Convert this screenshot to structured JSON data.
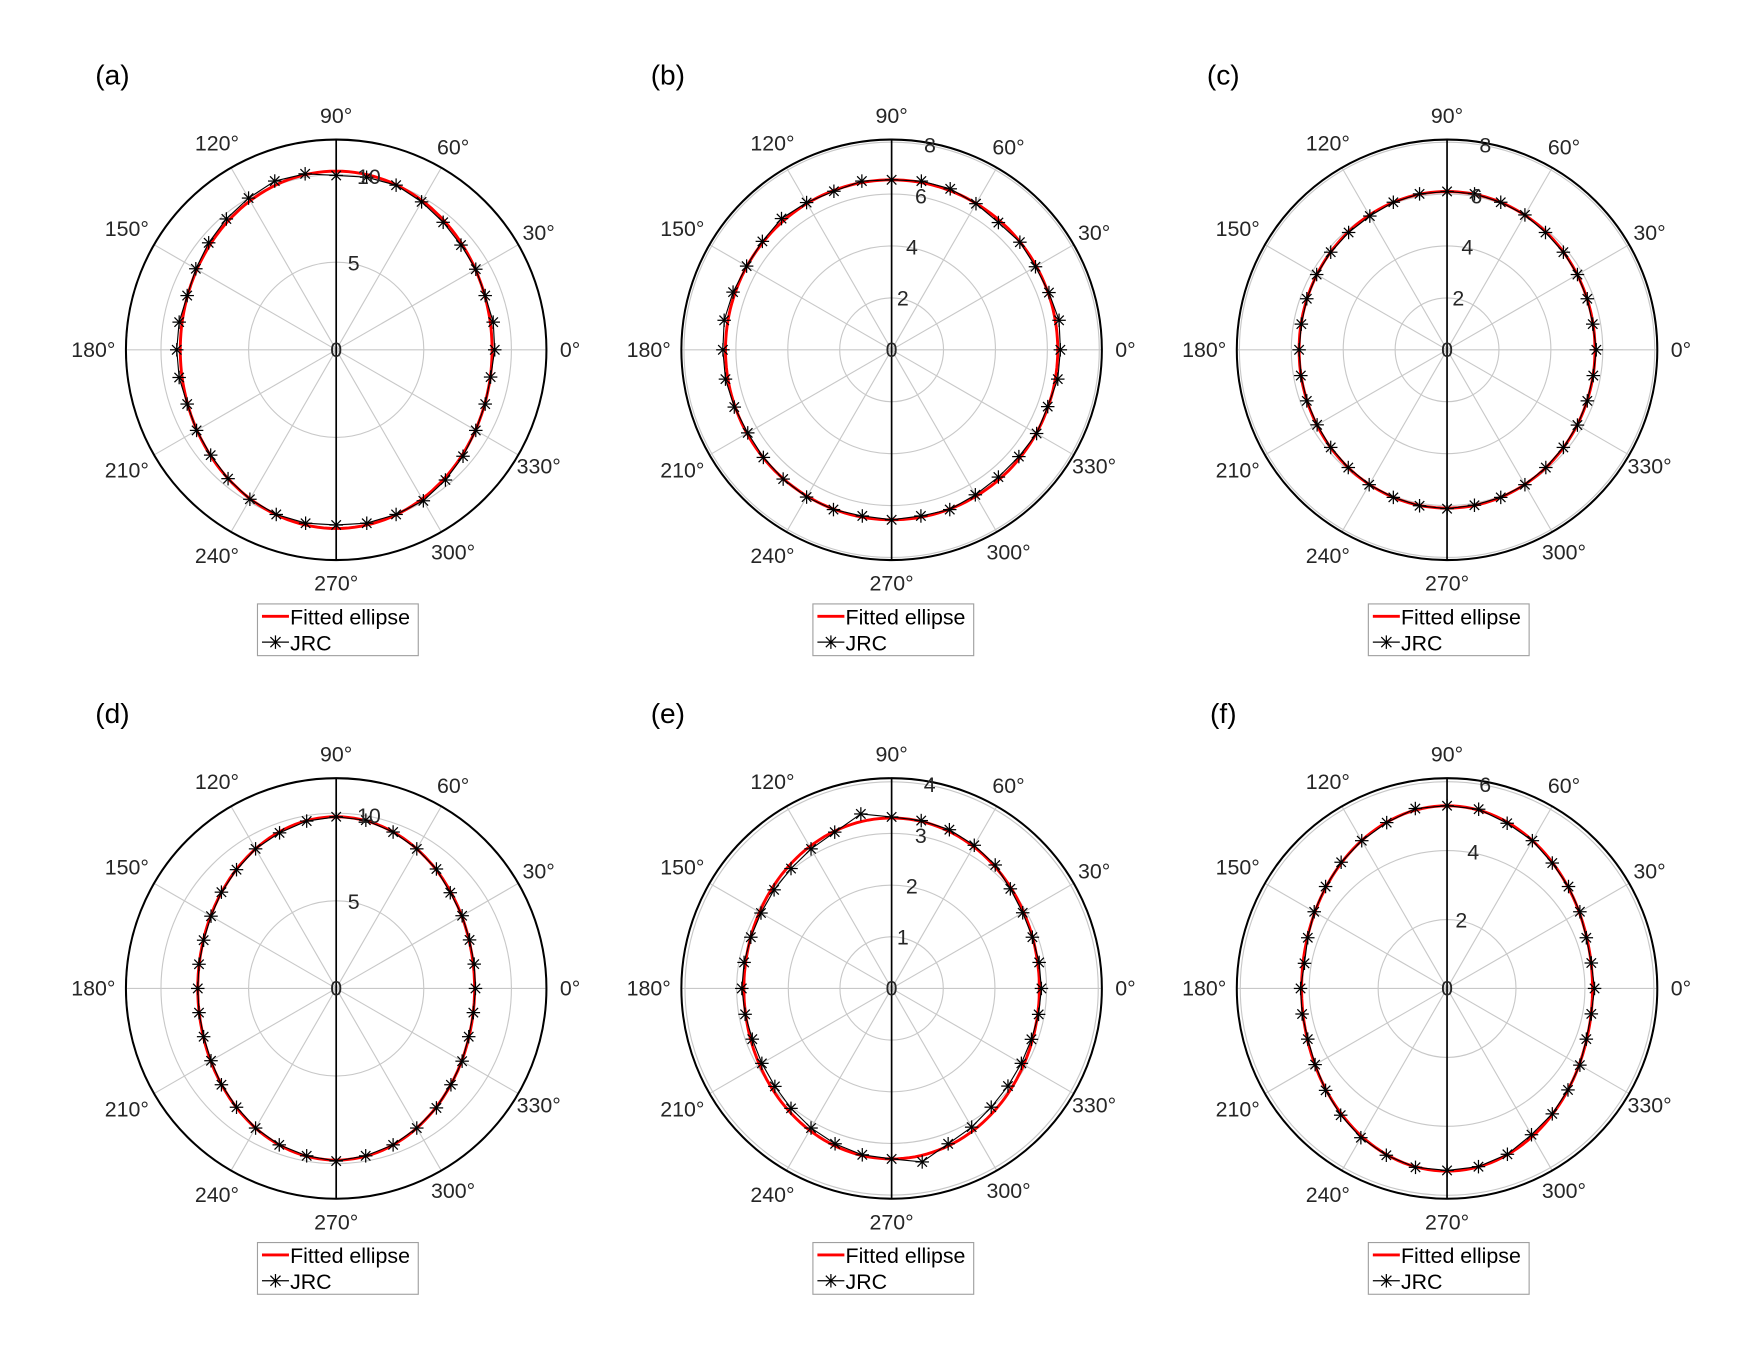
{
  "chart_data": [
    {
      "type": "polar",
      "label": "(a)",
      "rlim": [
        0,
        12
      ],
      "rticks": [
        "0",
        "5",
        "10"
      ],
      "rtick_values": [
        0,
        5,
        10
      ],
      "fitted_ellipse": {
        "semi_axis_0deg": 8.9,
        "semi_axis_90deg": 10.2
      },
      "jrc_theta_deg_step": 10,
      "jrc_r": [
        9.05,
        9.1,
        9.05,
        9.2,
        9.3,
        9.5,
        9.75,
        10.0,
        10.0,
        9.95,
        10.2,
        10.25,
        10.0,
        9.75,
        9.5,
        9.25,
        9.05,
        9.1,
        9.1,
        9.1,
        9.05,
        9.2,
        9.35,
        9.6,
        9.85,
        10.0,
        10.05,
        10.0,
        10.05,
        10.0,
        9.95,
        9.7,
        9.45,
        9.2,
        9.05,
        8.95
      ]
    },
    {
      "type": "polar",
      "label": "(b)",
      "rlim": [
        0,
        8.1
      ],
      "rticks": [
        "0",
        "2",
        "4",
        "6",
        "8"
      ],
      "rtick_values": [
        0,
        2,
        4,
        6,
        8
      ],
      "fitted_ellipse": {
        "semi_axis_0deg": 6.4,
        "semi_axis_90deg": 6.55
      },
      "jrc_theta_deg_step": 10,
      "jrc_r": [
        6.5,
        6.55,
        6.45,
        6.4,
        6.45,
        6.4,
        6.5,
        6.6,
        6.6,
        6.55,
        6.6,
        6.5,
        6.55,
        6.6,
        6.5,
        6.45,
        6.5,
        6.55,
        6.5,
        6.5,
        6.45,
        6.4,
        6.45,
        6.5,
        6.55,
        6.55,
        6.5,
        6.55,
        6.5,
        6.55,
        6.45,
        6.4,
        6.4,
        6.45,
        6.4,
        6.5
      ]
    },
    {
      "type": "polar",
      "label": "(c)",
      "rlim": [
        0,
        8.1
      ],
      "rticks": [
        "0",
        "2",
        "4",
        "6",
        "8"
      ],
      "rtick_values": [
        0,
        2,
        4,
        6,
        8
      ],
      "fitted_ellipse": {
        "semi_axis_0deg": 5.7,
        "semi_axis_90deg": 6.1
      },
      "jrc_theta_deg_step": 10,
      "jrc_r": [
        5.75,
        5.7,
        5.75,
        5.8,
        5.85,
        5.9,
        6.0,
        6.05,
        6.1,
        6.1,
        6.1,
        6.05,
        5.95,
        5.9,
        5.85,
        5.8,
        5.75,
        5.7,
        5.7,
        5.72,
        5.75,
        5.78,
        5.85,
        5.92,
        6.0,
        6.05,
        6.1,
        6.12,
        6.08,
        6.05,
        6.0,
        5.92,
        5.85,
        5.8,
        5.75,
        5.72
      ]
    },
    {
      "type": "polar",
      "label": "(d)",
      "rlim": [
        0,
        12
      ],
      "rticks": [
        "0",
        "5",
        "10"
      ],
      "rtick_values": [
        0,
        5,
        10
      ],
      "fitted_ellipse": {
        "semi_axis_0deg": 7.9,
        "semi_axis_90deg": 9.8
      },
      "jrc_theta_deg_step": 10,
      "jrc_r": [
        7.95,
        8.0,
        8.1,
        8.3,
        8.5,
        8.9,
        9.2,
        9.5,
        9.75,
        9.8,
        9.7,
        9.45,
        9.2,
        8.85,
        8.55,
        8.25,
        8.05,
        7.95,
        7.9,
        7.95,
        8.05,
        8.25,
        8.55,
        8.85,
        9.2,
        9.5,
        9.7,
        9.85,
        9.7,
        9.5,
        9.2,
        8.9,
        8.55,
        8.3,
        8.05,
        7.95
      ]
    },
    {
      "type": "polar",
      "label": "(e)",
      "rlim": [
        0,
        4.07
      ],
      "rticks": [
        "0",
        "1",
        "2",
        "3",
        "4"
      ],
      "rtick_values": [
        0,
        1,
        2,
        3,
        4
      ],
      "fitted_ellipse": {
        "semi_axis_0deg": 2.86,
        "semi_axis_90deg": 3.3
      },
      "jrc_theta_deg_step": 10,
      "jrc_r": [
        2.9,
        2.9,
        2.9,
        2.93,
        3.0,
        3.12,
        3.2,
        3.27,
        3.3,
        3.32,
        3.43,
        3.22,
        3.12,
        3.03,
        2.97,
        2.92,
        2.9,
        2.9,
        2.9,
        2.88,
        2.87,
        2.9,
        2.95,
        3.03,
        3.12,
        3.2,
        3.27,
        3.3,
        3.41,
        3.2,
        3.1,
        3.0,
        2.94,
        2.9,
        2.88,
        2.89
      ]
    },
    {
      "type": "polar",
      "label": "(f)",
      "rlim": [
        0,
        6.1
      ],
      "rticks": [
        "0",
        "2",
        "4",
        "6"
      ],
      "rtick_values": [
        0,
        2,
        4,
        6
      ],
      "fitted_ellipse": {
        "semi_axis_0deg": 4.22,
        "semi_axis_90deg": 5.3
      },
      "jrc_theta_deg_step": 10,
      "jrc_r": [
        4.28,
        4.25,
        4.3,
        4.45,
        4.6,
        4.75,
        4.95,
        5.1,
        5.28,
        5.3,
        5.3,
        5.12,
        4.95,
        4.78,
        4.6,
        4.45,
        4.3,
        4.2,
        4.25,
        4.27,
        4.3,
        4.42,
        4.6,
        4.8,
        5.0,
        5.15,
        5.27,
        5.28,
        5.25,
        5.12,
        4.9,
        4.75,
        4.58,
        4.45,
        4.3,
        4.25
      ]
    }
  ],
  "angle_labels": [
    "0°",
    "30°",
    "60°",
    "90°",
    "120°",
    "150°",
    "180°",
    "210°",
    "240°",
    "270°",
    "300°",
    "330°"
  ],
  "angle_values": [
    0,
    30,
    60,
    90,
    120,
    150,
    180,
    210,
    240,
    270,
    300,
    330
  ],
  "legend": {
    "fitted": "Fitted ellipse",
    "jrc": "JRC"
  },
  "colors": {
    "fitted": "#ff0000",
    "jrc": "#000000",
    "grid": "#c8c8c8",
    "axis": "#000000"
  }
}
